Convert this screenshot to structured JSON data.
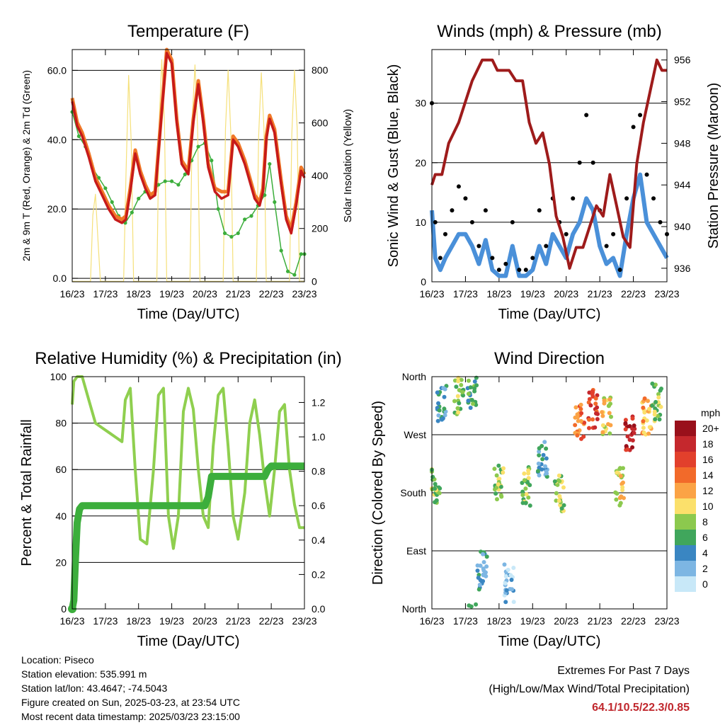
{
  "colors": {
    "temp2m": "#c61a1a",
    "temp9m": "#f07828",
    "dewpoint": "#3cae3c",
    "solar": "#f5e07a",
    "wind": "#4a90d9",
    "gust": "#000000",
    "pressure": "#9e1b1b",
    "rh": "#8fcf4f",
    "precip": "#3cae3c",
    "extremes": "#c0272d"
  },
  "chart_data": [
    {
      "type": "line",
      "title": "Temperature (F)",
      "xlabel": "Time (Day/UTC)",
      "ylabel": "2m & 9m T (Red, Orange) & 2m Td (Green)",
      "y2label": "Solar Insolation (Yellow)",
      "x_ticks": [
        "16/23",
        "17/23",
        "18/23",
        "19/23",
        "20/23",
        "21/23",
        "22/23",
        "23/23"
      ],
      "xlim": [
        0,
        7
      ],
      "ylim": [
        -1,
        66
      ],
      "y_ticks": [
        "0.0",
        "20.0",
        "40.0",
        "60.0"
      ],
      "y2lim": [
        -2,
        878
      ],
      "y2_ticks": [
        "0",
        "200",
        "400",
        "600",
        "800"
      ],
      "grid": true,
      "series": [
        {
          "key": "t2m",
          "x": [
            0,
            0.15,
            0.3,
            0.5,
            0.7,
            0.9,
            1.1,
            1.3,
            1.5,
            1.62,
            1.75,
            1.9,
            2.05,
            2.2,
            2.35,
            2.5,
            2.7,
            2.85,
            3.0,
            3.15,
            3.3,
            3.5,
            3.65,
            3.8,
            3.95,
            4.1,
            4.3,
            4.5,
            4.7,
            4.85,
            5.0,
            5.2,
            5.35,
            5.5,
            5.65,
            5.75,
            5.85,
            5.95,
            6.1,
            6.3,
            6.45,
            6.6,
            6.75,
            6.9,
            7.0
          ],
          "values": [
            51,
            44,
            41,
            35,
            28,
            24,
            20,
            17,
            16,
            17,
            25,
            36,
            30,
            26,
            23,
            24,
            48,
            65,
            62,
            45,
            33,
            30,
            45,
            56,
            45,
            32,
            25,
            23,
            24,
            40,
            38,
            33,
            28,
            23,
            21,
            25,
            40,
            46,
            42,
            27,
            17,
            13,
            21,
            31,
            29
          ]
        },
        {
          "key": "t9m",
          "x": [
            0,
            0.15,
            0.3,
            0.5,
            0.7,
            0.9,
            1.1,
            1.3,
            1.5,
            1.62,
            1.75,
            1.9,
            2.05,
            2.2,
            2.35,
            2.5,
            2.7,
            2.85,
            3.0,
            3.15,
            3.3,
            3.5,
            3.65,
            3.8,
            3.95,
            4.1,
            4.3,
            4.5,
            4.7,
            4.85,
            5.0,
            5.2,
            5.35,
            5.5,
            5.65,
            5.75,
            5.85,
            5.95,
            6.1,
            6.3,
            6.45,
            6.6,
            6.75,
            6.9,
            7.0
          ],
          "values": [
            52,
            45,
            42,
            36,
            29,
            25,
            21,
            18,
            17,
            18,
            26,
            37,
            31,
            27,
            24,
            25,
            49,
            66,
            63,
            46,
            34,
            31,
            46,
            57,
            46,
            33,
            26,
            25,
            25,
            41,
            39,
            34,
            29,
            24,
            22,
            26,
            41,
            47,
            43,
            28,
            18,
            14,
            22,
            32,
            30
          ]
        },
        {
          "key": "td2m",
          "x": [
            0,
            0.2,
            0.4,
            0.6,
            0.8,
            1.0,
            1.2,
            1.4,
            1.6,
            1.8,
            2.0,
            2.2,
            2.4,
            2.6,
            2.8,
            3.0,
            3.2,
            3.4,
            3.6,
            3.8,
            4.0,
            4.2,
            4.4,
            4.6,
            4.8,
            5.0,
            5.2,
            5.4,
            5.6,
            5.8,
            5.95,
            6.1,
            6.3,
            6.5,
            6.7,
            6.9,
            7.0
          ],
          "values": [
            48,
            41,
            38,
            32,
            29,
            26,
            22,
            18,
            16,
            19,
            23,
            25,
            24,
            27,
            28,
            28,
            27,
            30,
            34,
            38,
            39,
            34,
            20,
            13,
            12,
            13,
            17,
            18,
            21,
            24,
            33,
            22,
            8,
            2,
            1,
            7,
            7
          ]
        },
        {
          "key": "solar",
          "x": [
            0,
            0.55,
            0.62,
            0.7,
            0.78,
            0.85,
            1.55,
            1.62,
            1.7,
            1.78,
            1.85,
            2.55,
            2.62,
            2.7,
            2.78,
            2.85,
            3.55,
            3.62,
            3.7,
            3.78,
            3.85,
            4.55,
            4.62,
            4.7,
            4.78,
            4.85,
            5.55,
            5.62,
            5.7,
            5.78,
            5.85,
            6.55,
            6.62,
            6.7,
            6.78,
            6.85,
            7.0
          ],
          "values": [
            0,
            0,
            250,
            330,
            150,
            0,
            0,
            400,
            780,
            520,
            0,
            0,
            600,
            840,
            600,
            0,
            0,
            620,
            820,
            580,
            0,
            0,
            580,
            800,
            560,
            0,
            0,
            550,
            790,
            580,
            0,
            0,
            560,
            800,
            580,
            0,
            0
          ]
        }
      ]
    },
    {
      "type": "line",
      "title": "Winds (mph) & Pressure (mb)",
      "xlabel": "Time (Day/UTC)",
      "ylabel": "Sonic Wind & Gust (Blue, Black)",
      "y2label": "Station Pressure (Maroon)",
      "x_ticks": [
        "16/23",
        "17/23",
        "18/23",
        "19/23",
        "20/23",
        "21/23",
        "22/23",
        "23/23"
      ],
      "xlim": [
        0,
        7
      ],
      "ylim": [
        0,
        39
      ],
      "y_ticks": [
        "0",
        "10",
        "20",
        "30"
      ],
      "y2lim": [
        934.7,
        957
      ],
      "y2_ticks": [
        "936",
        "940",
        "944",
        "948",
        "952",
        "956"
      ],
      "grid": true,
      "series": [
        {
          "key": "gust",
          "x": [
            0,
            0.1,
            0.25,
            0.4,
            0.6,
            0.8,
            1.0,
            1.2,
            1.4,
            1.6,
            1.8,
            2.0,
            2.2,
            2.4,
            2.6,
            2.8,
            3.0,
            3.2,
            3.4,
            3.6,
            3.8,
            4.0,
            4.2,
            4.4,
            4.6,
            4.8,
            5.0,
            5.2,
            5.4,
            5.6,
            5.8,
            6.0,
            6.2,
            6.4,
            6.6,
            6.8,
            7.0
          ],
          "values": [
            30,
            10,
            4,
            8,
            12,
            16,
            14,
            10,
            6,
            12,
            4,
            2,
            3,
            10,
            2,
            2,
            4,
            12,
            6,
            14,
            10,
            8,
            14,
            20,
            28,
            20,
            12,
            6,
            8,
            2,
            14,
            26,
            28,
            18,
            14,
            10,
            8
          ]
        },
        {
          "key": "wind",
          "x": [
            0,
            0.1,
            0.25,
            0.4,
            0.6,
            0.8,
            1.0,
            1.2,
            1.4,
            1.6,
            1.8,
            2.0,
            2.2,
            2.4,
            2.6,
            2.8,
            3.0,
            3.2,
            3.4,
            3.6,
            3.8,
            4.0,
            4.2,
            4.4,
            4.6,
            4.8,
            5.0,
            5.2,
            5.4,
            5.6,
            5.8,
            6.0,
            6.2,
            6.4,
            6.6,
            6.8,
            7.0
          ],
          "values": [
            12,
            4,
            2,
            4,
            6,
            8,
            8,
            6,
            3,
            7,
            2,
            1,
            1,
            6,
            1,
            1,
            2,
            6,
            3,
            8,
            6,
            4,
            8,
            10,
            14,
            12,
            6,
            3,
            4,
            1,
            8,
            14,
            18,
            10,
            8,
            6,
            4
          ]
        },
        {
          "key": "pressure",
          "x": [
            0,
            0.1,
            0.3,
            0.5,
            0.8,
            1.0,
            1.2,
            1.5,
            1.8,
            1.95,
            2.1,
            2.3,
            2.5,
            2.7,
            2.9,
            3.1,
            3.3,
            3.5,
            3.7,
            3.9,
            4.1,
            4.3,
            4.5,
            4.7,
            4.9,
            5.1,
            5.3,
            5.5,
            5.7,
            5.9,
            6.1,
            6.3,
            6.5,
            6.7,
            6.85,
            7.0
          ],
          "values": [
            944,
            945,
            945,
            948,
            950,
            952,
            954,
            956,
            956,
            955,
            955,
            955,
            954,
            954,
            950,
            948,
            949,
            946,
            941,
            939,
            936,
            938,
            938,
            940,
            942,
            941,
            945,
            942,
            939,
            938,
            946,
            950,
            953,
            956,
            955,
            955
          ]
        }
      ]
    },
    {
      "type": "line",
      "title": "Relative Humidity (%) & Precipitation (in)",
      "xlabel": "Time (Day/UTC)",
      "ylabel": "Percent & Total Rainfall",
      "x_ticks": [
        "16/23",
        "17/23",
        "18/23",
        "19/23",
        "20/23",
        "21/23",
        "22/23",
        "23/23"
      ],
      "xlim": [
        0,
        7
      ],
      "ylim": [
        0,
        100
      ],
      "y_ticks": [
        "0",
        "20",
        "40",
        "60",
        "80",
        "100"
      ],
      "y2lim": [
        0,
        1.35
      ],
      "y2_ticks": [
        "0.0",
        "0.2",
        "0.4",
        "0.6",
        "0.8",
        "1.0",
        "1.2"
      ],
      "grid": true,
      "series": [
        {
          "key": "rh",
          "x": [
            0,
            0.05,
            0.15,
            0.3,
            0.5,
            0.7,
            0.9,
            1.1,
            1.3,
            1.5,
            1.6,
            1.75,
            1.9,
            2.05,
            2.25,
            2.45,
            2.6,
            2.75,
            2.9,
            3.05,
            3.2,
            3.35,
            3.5,
            3.65,
            3.8,
            3.95,
            4.1,
            4.25,
            4.4,
            4.55,
            4.7,
            4.85,
            5.0,
            5.2,
            5.35,
            5.5,
            5.65,
            5.8,
            5.95,
            6.1,
            6.25,
            6.4,
            6.55,
            6.7,
            6.85,
            7.0
          ],
          "values": [
            88,
            98,
            100,
            100,
            90,
            80,
            78,
            76,
            74,
            72,
            90,
            95,
            60,
            30,
            28,
            60,
            92,
            95,
            40,
            26,
            40,
            85,
            95,
            86,
            60,
            40,
            35,
            70,
            92,
            95,
            70,
            40,
            30,
            50,
            80,
            90,
            75,
            55,
            40,
            60,
            85,
            88,
            60,
            45,
            35,
            35
          ]
        },
        {
          "key": "precip",
          "x": [
            0,
            0.05,
            0.1,
            0.15,
            0.22,
            0.3,
            0.5,
            1.0,
            2.0,
            3.0,
            4.0,
            4.1,
            4.2,
            5.0,
            5.8,
            5.9,
            6.0,
            6.5,
            7.0
          ],
          "values": [
            0,
            0.05,
            0.3,
            0.5,
            0.58,
            0.6,
            0.6,
            0.6,
            0.6,
            0.6,
            0.6,
            0.65,
            0.77,
            0.77,
            0.77,
            0.81,
            0.83,
            0.83,
            0.83
          ]
        }
      ]
    },
    {
      "type": "scatter",
      "title": "Wind Direction",
      "xlabel": "Time (Day/UTC)",
      "ylabel": "Direction (Colored By Speed)",
      "x_ticks": [
        "16/23",
        "17/23",
        "18/23",
        "19/23",
        "20/23",
        "21/23",
        "22/23",
        "23/23"
      ],
      "xlim": [
        0,
        7
      ],
      "ylim": [
        0,
        360
      ],
      "y_ticks": [
        "North",
        "East",
        "South",
        "West",
        "North"
      ],
      "grid": true,
      "legend": {
        "title": "mph",
        "labels": [
          "20+",
          "18",
          "16",
          "14",
          "12",
          "10",
          "8",
          "6",
          "4",
          "2",
          "0"
        ],
        "colors": [
          "#99101b",
          "#c5282d",
          "#e2402c",
          "#f26a2a",
          "#fba345",
          "#fbe06b",
          "#8cc94e",
          "#40a65c",
          "#3a86c2",
          "#7db6e3",
          "#c8e8f8"
        ],
        "placement": "right"
      },
      "clusters": [
        {
          "x": 0.1,
          "dir": 190,
          "spd": 8
        },
        {
          "x": 0.3,
          "dir": 320,
          "spd": 4
        },
        {
          "x": 0.8,
          "dir": 330,
          "spd": 8
        },
        {
          "x": 1.2,
          "dir": 340,
          "spd": 6
        },
        {
          "x": 1.5,
          "dir": 60,
          "spd": 4
        },
        {
          "x": 2.0,
          "dir": 200,
          "spd": 8
        },
        {
          "x": 2.3,
          "dir": 40,
          "spd": 2
        },
        {
          "x": 2.8,
          "dir": 190,
          "spd": 8
        },
        {
          "x": 3.3,
          "dir": 230,
          "spd": 4
        },
        {
          "x": 3.8,
          "dir": 180,
          "spd": 8
        },
        {
          "x": 4.4,
          "dir": 290,
          "spd": 14
        },
        {
          "x": 4.8,
          "dir": 310,
          "spd": 16
        },
        {
          "x": 5.2,
          "dir": 300,
          "spd": 10
        },
        {
          "x": 5.6,
          "dir": 190,
          "spd": 10
        },
        {
          "x": 5.9,
          "dir": 270,
          "spd": 18
        },
        {
          "x": 6.4,
          "dir": 300,
          "spd": 12
        },
        {
          "x": 6.7,
          "dir": 320,
          "spd": 8
        }
      ]
    }
  ],
  "info": {
    "location": "Location: Piseco",
    "elevation": "Station elevation: 535.991 m",
    "latlon": "Station lat/lon: 43.4647; -74.5043",
    "created": "Figure created on Sun, 2025-03-23, at 23:54 UTC",
    "recent": "Most recent data timestamp: 2025/03/23 23:15:00"
  },
  "extremes": {
    "title": "Extremes For Past 7 Days",
    "subtitle": "(High/Low/Max Wind/Total Precipitation)",
    "value": "64.1/10.5/22.3/0.85"
  }
}
